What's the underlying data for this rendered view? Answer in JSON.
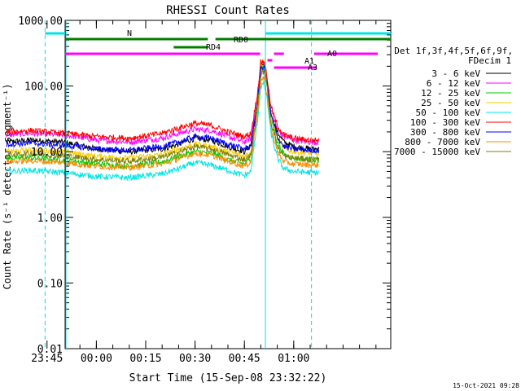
{
  "chart_data": {
    "type": "line",
    "title": "RHESSI Count Rates",
    "xlabel": "Start Time (15-Sep-08 23:32:22)",
    "ylabel": "Count Rate (s⁻¹ detector segment⁻¹)",
    "yscale": "log",
    "ylim": [
      0.01,
      1000
    ],
    "xlim_minutes": [
      -9.5,
      89.5
    ],
    "x_units": "minutes from 00:00 UT (16-Sep-08)",
    "ytick_labels": [
      "0.01",
      "0.10",
      "1.00",
      "10.00",
      "100.00",
      "1000.00"
    ],
    "ytick_values": [
      0.01,
      0.1,
      1,
      10,
      100,
      1000
    ],
    "xtick_labels": [
      "23:45",
      "00:00",
      "00:15",
      "00:30",
      "00:45",
      "01:00"
    ],
    "xtick_values": [
      -15,
      0,
      15,
      30,
      45,
      60
    ],
    "legend_title": "Det 1f,3f,4f,5f,6f,9f,",
    "legend_subtitle": "FDecim 1",
    "legend_placement": "right",
    "timestamp": "15-Oct-2021 09:28",
    "series": [
      {
        "name": "3 - 6 keV",
        "color": "#000000",
        "x": [
          -27.4,
          -20,
          -10,
          0,
          10,
          20,
          25,
          30,
          35,
          40,
          45,
          47,
          49,
          50,
          51,
          52,
          53,
          55,
          57,
          60,
          65,
          67.8
        ],
        "y": [
          14,
          15,
          14,
          11,
          10,
          11,
          13,
          16,
          15,
          12,
          10,
          13,
          60,
          200,
          220,
          110,
          40,
          20,
          14,
          12,
          11,
          11
        ]
      },
      {
        "name": "6 - 12 keV",
        "color": "#ff00ff",
        "x": [
          -27.4,
          -20,
          -10,
          0,
          10,
          20,
          25,
          30,
          35,
          40,
          45,
          47,
          49,
          50,
          51,
          52,
          53,
          55,
          57,
          60,
          65,
          67.8
        ],
        "y": [
          18,
          19,
          18,
          15,
          14,
          16,
          19,
          22,
          21,
          17,
          14,
          16,
          70,
          210,
          230,
          120,
          45,
          22,
          17,
          15,
          14,
          14
        ]
      },
      {
        "name": "12 - 25 keV",
        "color": "#00cc00",
        "x": [
          -27.4,
          -20,
          -10,
          0,
          10,
          20,
          25,
          30,
          35,
          40,
          45,
          47,
          49,
          50,
          51,
          52,
          53,
          55,
          57,
          60,
          65,
          67.8
        ],
        "y": [
          8,
          8,
          7.5,
          6.5,
          6,
          7,
          8.5,
          10,
          9.5,
          7.5,
          6.5,
          8,
          50,
          180,
          200,
          100,
          35,
          14,
          9,
          8,
          7.5,
          7.5
        ]
      },
      {
        "name": "25 - 50 keV",
        "color": "#ffcc00",
        "x": [
          -27.4,
          -20,
          -10,
          0,
          10,
          20,
          25,
          30,
          35,
          40,
          45,
          47,
          49,
          50,
          51,
          52,
          53,
          55,
          57,
          60,
          65,
          67.8
        ],
        "y": [
          10,
          10.5,
          10,
          8.5,
          8,
          9,
          11,
          13,
          12,
          10,
          8.5,
          10,
          60,
          220,
          250,
          120,
          40,
          16,
          11,
          10,
          9.5,
          9.5
        ]
      },
      {
        "name": "50 - 100 keV",
        "color": "#00e5e5",
        "x": [
          -27.4,
          -20,
          -10,
          0,
          10,
          20,
          25,
          30,
          35,
          40,
          45,
          47,
          49,
          50,
          51,
          52,
          53,
          55,
          57,
          60,
          65,
          67.8
        ],
        "y": [
          5,
          5.2,
          4.8,
          4.2,
          4,
          4.6,
          5.5,
          6.8,
          6.2,
          5.2,
          4.3,
          5,
          30,
          100,
          110,
          60,
          20,
          8,
          5.5,
          5,
          4.8,
          4.8
        ]
      },
      {
        "name": "100 - 300 keV",
        "color": "#ff0000",
        "x": [
          -27.4,
          -20,
          -10,
          0,
          10,
          20,
          25,
          30,
          35,
          40,
          45,
          47,
          49,
          50,
          51,
          52,
          53,
          55,
          57,
          60,
          65,
          67.8
        ],
        "y": [
          20,
          21,
          19,
          17,
          16,
          19,
          23,
          27,
          25,
          20,
          17,
          19,
          80,
          230,
          240,
          130,
          50,
          25,
          18,
          16,
          15,
          15
        ]
      },
      {
        "name": "300 - 800 keV",
        "color": "#0000ff",
        "x": [
          -27.4,
          -20,
          -10,
          0,
          10,
          20,
          25,
          30,
          35,
          40,
          45,
          47,
          49,
          50,
          51,
          52,
          53,
          55,
          57,
          60,
          65,
          67.8
        ],
        "y": [
          13,
          13.5,
          12.5,
          11,
          10.5,
          12,
          14,
          17,
          16,
          13,
          11,
          12,
          55,
          180,
          200,
          100,
          38,
          17,
          12,
          11,
          10.5,
          10.5
        ]
      },
      {
        "name": "800 - 7000 keV",
        "color": "#ff8c00",
        "x": [
          -27.4,
          -20,
          -10,
          0,
          10,
          20,
          25,
          30,
          35,
          40,
          45,
          47,
          49,
          50,
          51,
          52,
          53,
          55,
          57,
          60,
          65,
          67.8
        ],
        "y": [
          7,
          7.3,
          6.8,
          6,
          5.7,
          6.5,
          7.8,
          9.5,
          8.8,
          7.2,
          6,
          7,
          40,
          120,
          130,
          70,
          25,
          10,
          7,
          6.5,
          6.3,
          6.3
        ]
      },
      {
        "name": "7000 - 15000 keV",
        "color": "#808000",
        "x": [
          -27.4,
          -20,
          -10,
          0,
          10,
          20,
          25,
          30,
          35,
          40,
          45,
          47,
          49,
          50,
          51,
          52,
          53,
          55,
          57,
          60,
          65,
          67.8
        ],
        "y": [
          9,
          9.4,
          8.7,
          7.6,
          7.2,
          8.2,
          9.8,
          12,
          11,
          9,
          7.6,
          8.8,
          50,
          150,
          170,
          90,
          30,
          12,
          8.5,
          8,
          7.7,
          7.7
        ]
      }
    ],
    "annotations": [
      {
        "label": "N",
        "color": "#00e5e5"
      },
      {
        "label": "RD0",
        "color": "#008000"
      },
      {
        "label": "RD4",
        "color": "#008000"
      },
      {
        "label": "A0",
        "color": "#ff00ff"
      },
      {
        "label": "A1",
        "color": "#ff00ff"
      },
      {
        "label": "A3",
        "color": "#ff00ff"
      }
    ]
  }
}
